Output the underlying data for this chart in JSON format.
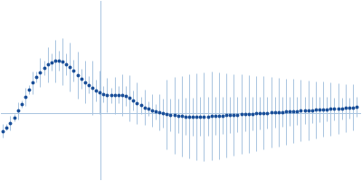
{
  "background_color": "#ffffff",
  "error_color": "#a8c4e0",
  "hline_color": "#a8c4e0",
  "vline_color": "#a8c4e0",
  "marker_color": "#1a4f99",
  "figsize": [
    4.0,
    2.0
  ],
  "dpi": 100,
  "x_values": [
    0.01,
    0.018,
    0.026,
    0.034,
    0.042,
    0.05,
    0.058,
    0.066,
    0.074,
    0.082,
    0.09,
    0.098,
    0.106,
    0.114,
    0.122,
    0.13,
    0.138,
    0.146,
    0.154,
    0.162,
    0.17,
    0.178,
    0.186,
    0.194,
    0.202,
    0.21,
    0.218,
    0.226,
    0.234,
    0.242,
    0.25,
    0.258,
    0.266,
    0.274,
    0.282,
    0.29,
    0.298,
    0.306,
    0.314,
    0.322,
    0.33,
    0.338,
    0.346,
    0.354,
    0.362,
    0.37,
    0.378,
    0.386,
    0.394,
    0.402,
    0.41,
    0.418,
    0.426,
    0.434,
    0.442,
    0.45,
    0.458,
    0.466,
    0.474,
    0.482,
    0.49,
    0.498,
    0.506,
    0.514,
    0.522,
    0.53,
    0.538,
    0.546,
    0.554,
    0.562,
    0.57,
    0.578,
    0.586,
    0.594,
    0.602,
    0.61,
    0.618,
    0.626,
    0.634,
    0.642,
    0.65,
    0.658,
    0.666,
    0.674,
    0.682,
    0.69,
    0.698,
    0.706,
    0.714,
    0.722,
    0.73,
    0.738,
    0.746,
    0.754,
    0.762,
    0.77
  ],
  "y_values": [
    -0.08,
    -0.065,
    -0.045,
    -0.02,
    0.01,
    0.04,
    0.072,
    0.105,
    0.135,
    0.16,
    0.182,
    0.2,
    0.215,
    0.226,
    0.232,
    0.232,
    0.228,
    0.218,
    0.205,
    0.188,
    0.168,
    0.152,
    0.138,
    0.125,
    0.112,
    0.1,
    0.092,
    0.085,
    0.08,
    0.078,
    0.078,
    0.08,
    0.08,
    0.075,
    0.066,
    0.055,
    0.044,
    0.034,
    0.025,
    0.018,
    0.012,
    0.006,
    0.002,
    -0.002,
    -0.005,
    -0.008,
    -0.01,
    -0.012,
    -0.014,
    -0.015,
    -0.016,
    -0.016,
    -0.016,
    -0.016,
    -0.016,
    -0.015,
    -0.014,
    -0.013,
    -0.012,
    -0.011,
    -0.01,
    -0.009,
    -0.008,
    -0.007,
    -0.006,
    -0.005,
    -0.004,
    -0.003,
    -0.002,
    -0.001,
    0.0,
    0.001,
    0.002,
    0.003,
    0.004,
    0.005,
    0.006,
    0.007,
    0.008,
    0.009,
    0.01,
    0.011,
    0.012,
    0.013,
    0.014,
    0.015,
    0.016,
    0.017,
    0.018,
    0.019,
    0.02,
    0.021,
    0.022,
    0.023,
    0.024,
    0.026
  ],
  "y_errors_lo": [
    0.03,
    0.032,
    0.034,
    0.036,
    0.038,
    0.04,
    0.042,
    0.044,
    0.05,
    0.058,
    0.065,
    0.072,
    0.08,
    0.088,
    0.095,
    0.1,
    0.105,
    0.108,
    0.11,
    0.108,
    0.105,
    0.1,
    0.095,
    0.088,
    0.08,
    0.072,
    0.064,
    0.056,
    0.052,
    0.052,
    0.054,
    0.058,
    0.062,
    0.066,
    0.068,
    0.066,
    0.062,
    0.056,
    0.052,
    0.048,
    0.048,
    0.05,
    0.054,
    0.058,
    0.062,
    0.066,
    0.068,
    0.07,
    0.072,
    0.074,
    0.075,
    0.076,
    0.077,
    0.078,
    0.079,
    0.079,
    0.079,
    0.078,
    0.077,
    0.076,
    0.075,
    0.074,
    0.073,
    0.072,
    0.071,
    0.07,
    0.069,
    0.068,
    0.067,
    0.066,
    0.065,
    0.064,
    0.063,
    0.062,
    0.061,
    0.06,
    0.059,
    0.058,
    0.057,
    0.056,
    0.055,
    0.054,
    0.053,
    0.052,
    0.051,
    0.05,
    0.049,
    0.048,
    0.047,
    0.046,
    0.045,
    0.044,
    0.043,
    0.042,
    0.041,
    0.04
  ],
  "y_errors_hi": [
    0.03,
    0.032,
    0.034,
    0.036,
    0.038,
    0.04,
    0.042,
    0.044,
    0.05,
    0.058,
    0.065,
    0.072,
    0.08,
    0.088,
    0.095,
    0.1,
    0.105,
    0.108,
    0.11,
    0.108,
    0.105,
    0.1,
    0.095,
    0.088,
    0.08,
    0.072,
    0.064,
    0.056,
    0.052,
    0.052,
    0.054,
    0.058,
    0.062,
    0.066,
    0.068,
    0.066,
    0.062,
    0.056,
    0.052,
    0.048,
    0.048,
    0.05,
    0.054,
    0.058,
    0.062,
    0.066,
    0.068,
    0.07,
    0.072,
    0.074,
    0.075,
    0.076,
    0.077,
    0.078,
    0.079,
    0.079,
    0.079,
    0.078,
    0.077,
    0.076,
    0.075,
    0.074,
    0.073,
    0.072,
    0.071,
    0.07,
    0.069,
    0.068,
    0.067,
    0.066,
    0.065,
    0.064,
    0.063,
    0.062,
    0.061,
    0.06,
    0.059,
    0.058,
    0.057,
    0.056,
    0.055,
    0.054,
    0.053,
    0.052,
    0.051,
    0.05,
    0.049,
    0.048,
    0.047,
    0.046,
    0.045,
    0.044,
    0.043,
    0.042,
    0.041,
    0.04
  ],
  "hline_y": 0.0,
  "vline_x": 0.22,
  "xlim": [
    0.005,
    0.78
  ],
  "ylim": [
    -0.3,
    0.5
  ]
}
